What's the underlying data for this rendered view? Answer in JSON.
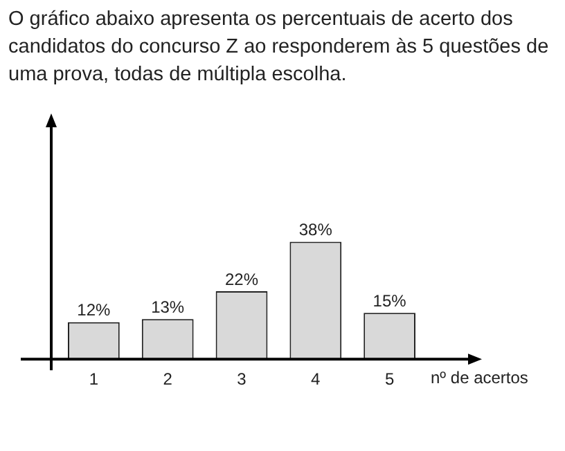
{
  "chart_data": {
    "type": "bar",
    "title": "O gráfico abaixo apresenta os percentuais de acerto dos candidatos do concurso Z ao responderem às 5 questões de uma prova, todas de múltipla escolha.",
    "categories": [
      "1",
      "2",
      "3",
      "4",
      "5"
    ],
    "values": [
      12,
      13,
      22,
      38,
      15
    ],
    "value_labels": [
      "12%",
      "13%",
      "22%",
      "38%",
      "15%"
    ],
    "color": "#d9d9d9",
    "xlabel": "nº de acertos",
    "grid": false,
    "legend": false
  }
}
